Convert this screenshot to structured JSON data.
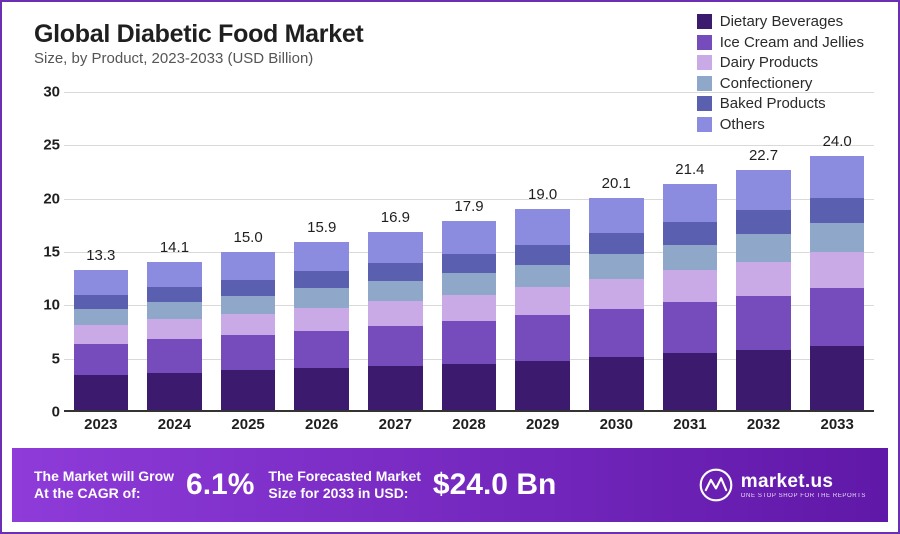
{
  "title": "Global Diabetic Food Market",
  "subtitle": "Size, by Product, 2023-2033 (USD Billion)",
  "chart": {
    "type": "stacked-bar",
    "background_color": "#ffffff",
    "grid_color": "#d9d9d9",
    "baseline_color": "#333333",
    "y": {
      "min": 0,
      "max": 30,
      "ticks": [
        0,
        5,
        10,
        15,
        20,
        25,
        30
      ],
      "tick_fontsize": 15,
      "tick_fontweight": 700,
      "tick_color": "#1f1f1f"
    },
    "title_fontsize": 25,
    "subtitle_fontsize": 15,
    "x_label_fontsize": 15,
    "total_label_fontsize": 15,
    "bar_width_ratio": 0.74,
    "categories": [
      "2023",
      "2024",
      "2025",
      "2026",
      "2027",
      "2028",
      "2029",
      "2030",
      "2031",
      "2032",
      "2033"
    ],
    "totals": [
      "13.3",
      "14.1",
      "15.0",
      "15.9",
      "16.9",
      "17.9",
      "19.0",
      "20.1",
      "21.4",
      "22.7",
      "24.0"
    ],
    "legend": [
      {
        "key": "dietary_beverages",
        "label": "Dietary Beverages",
        "color": "#3c1b6e"
      },
      {
        "key": "ice_cream_jellies",
        "label": "Ice Cream and Jellies",
        "color": "#764cbc"
      },
      {
        "key": "dairy_products",
        "label": "Dairy Products",
        "color": "#c9a9e6"
      },
      {
        "key": "confectionery",
        "label": "Confectionery",
        "color": "#8fa7c9"
      },
      {
        "key": "baked_products",
        "label": "Baked Products",
        "color": "#5a5fb0"
      },
      {
        "key": "others",
        "label": "Others",
        "color": "#8b8be0"
      }
    ],
    "series": {
      "dietary_beverages": [
        3.5,
        3.7,
        3.9,
        4.1,
        4.3,
        4.5,
        4.8,
        5.2,
        5.5,
        5.8,
        6.2
      ],
      "ice_cream_jellies": [
        2.9,
        3.1,
        3.3,
        3.5,
        3.8,
        4.0,
        4.3,
        4.5,
        4.8,
        5.1,
        5.4
      ],
      "dairy_products": [
        1.8,
        1.9,
        2.0,
        2.2,
        2.3,
        2.5,
        2.6,
        2.8,
        3.0,
        3.2,
        3.4
      ],
      "confectionery": [
        1.5,
        1.6,
        1.7,
        1.8,
        1.9,
        2.0,
        2.1,
        2.3,
        2.4,
        2.6,
        2.7
      ],
      "baked_products": [
        1.3,
        1.4,
        1.5,
        1.6,
        1.7,
        1.8,
        1.9,
        2.0,
        2.1,
        2.2,
        2.4
      ],
      "others": [
        2.3,
        2.4,
        2.6,
        2.7,
        2.9,
        3.1,
        3.3,
        3.3,
        3.6,
        3.8,
        3.9
      ]
    }
  },
  "footer": {
    "background_gradient_from": "#8e3bd9",
    "background_gradient_to": "#6018a8",
    "text_color": "#ffffff",
    "cagr_label_line1": "The Market will Grow",
    "cagr_label_line2": "At the CAGR of:",
    "cagr_value": "6.1%",
    "forecast_label_line1": "The Forecasted Market",
    "forecast_label_line2": "Size for 2033 in USD:",
    "forecast_value": "$24.0 Bn",
    "brand_name": "market.us",
    "brand_tagline": "ONE STOP SHOP FOR THE REPORTS"
  }
}
